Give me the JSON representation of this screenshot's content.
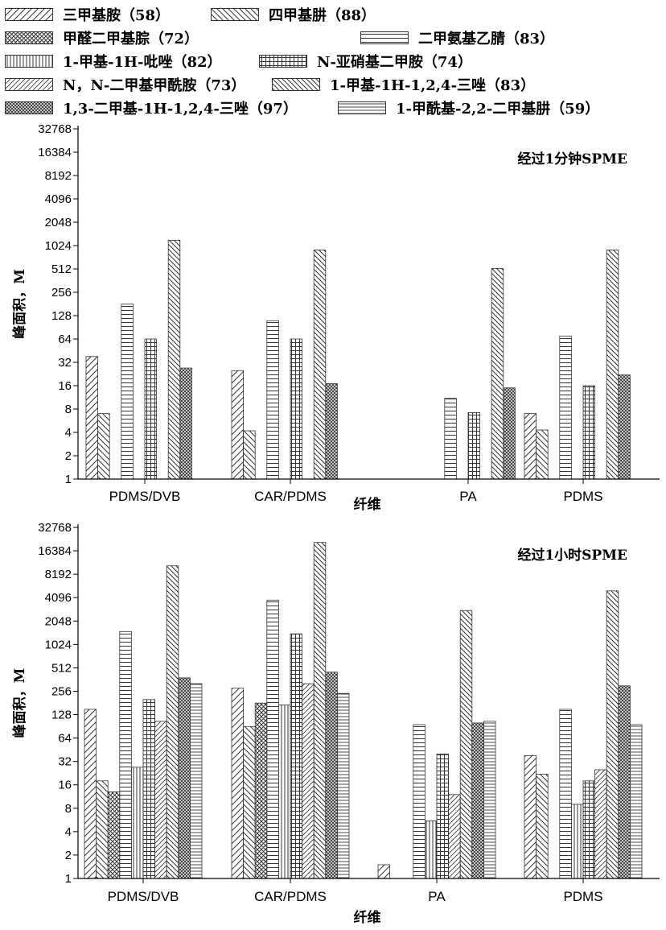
{
  "legend": {
    "items": [
      "三甲基胺（58）",
      "四甲基肼（88）",
      "甲醛二甲基腙（72）",
      "二甲氨基乙腈（83）",
      "1-甲基-1H-吡唑（82）",
      "N-亚硝基二甲胺（74）",
      "N，N-二甲基甲酰胺（73）",
      "1-甲基-1H-1,2,4-三唑（83）",
      "1,3-二甲基-1H-1,2,4-三唑（97）",
      "1-甲酰基-2,2-二甲基肼（59）"
    ]
  },
  "colors": {
    "stroke": "#333333",
    "axis": "#000000",
    "background": "#ffffff"
  },
  "chart_data": [
    {
      "type": "bar",
      "annotation": "经过1分钟SPME",
      "xlabel": "纤维",
      "ylabel": "峰面积，M",
      "yscale": "log2",
      "ylim": [
        1,
        32768
      ],
      "yticks": [
        "1",
        "2",
        "4",
        "8",
        "16",
        "32",
        "64",
        "128",
        "256",
        "512",
        "1024",
        "2048",
        "4096",
        "8192",
        "16384",
        "32768"
      ],
      "categories": [
        "PDMS/DVB",
        "CAR/PDMS",
        "PA",
        "PDMS"
      ],
      "series": [
        {
          "name": "三甲基胺（58）",
          "values": [
            38,
            25,
            null,
            7
          ]
        },
        {
          "name": "四甲基肼（88）",
          "values": [
            7,
            4.2,
            null,
            4.3
          ]
        },
        {
          "name": "甲醛二甲基腙（72）",
          "values": [
            null,
            null,
            null,
            null
          ]
        },
        {
          "name": "二甲氨基乙腈（83）",
          "values": [
            180,
            110,
            11,
            70
          ]
        },
        {
          "name": "1-甲基-1H-吡唑（82）",
          "values": [
            null,
            null,
            null,
            null
          ]
        },
        {
          "name": "N-亚硝基二甲胺（74）",
          "values": [
            64,
            64,
            7.2,
            16
          ]
        },
        {
          "name": "N，N-二甲基甲酰胺（73）",
          "values": [
            null,
            null,
            null,
            null
          ]
        },
        {
          "name": "1-甲基-1H-1,2,4-三唑（83）",
          "values": [
            1200,
            900,
            520,
            900
          ]
        },
        {
          "name": "1,3-二甲基-1H-1,2,4-三唑（97）",
          "values": [
            27,
            17,
            15,
            22
          ]
        },
        {
          "name": "1-甲酰基-2,2-二甲基肼（59）",
          "values": [
            null,
            null,
            null,
            null
          ]
        }
      ]
    },
    {
      "type": "bar",
      "annotation": "经过1小时SPME",
      "xlabel": "纤维",
      "ylabel": "峰面积，M",
      "yscale": "log2",
      "ylim": [
        1,
        32768
      ],
      "yticks": [
        "1",
        "2",
        "4",
        "8",
        "16",
        "32",
        "64",
        "128",
        "256",
        "512",
        "1024",
        "2048",
        "4096",
        "8192",
        "16384",
        "32768"
      ],
      "categories": [
        "PDMS/DVB",
        "CAR/PDMS",
        "PA",
        "PDMS"
      ],
      "series": [
        {
          "name": "三甲基胺（58）",
          "values": [
            150,
            280,
            1.5,
            38
          ]
        },
        {
          "name": "四甲基肼（88）",
          "values": [
            18,
            90,
            null,
            22
          ]
        },
        {
          "name": "甲醛二甲基腙（72）",
          "values": [
            13,
            180,
            null,
            null
          ]
        },
        {
          "name": "二甲氨基乙腈（83）",
          "values": [
            1500,
            3800,
            95,
            150
          ]
        },
        {
          "name": "1-甲基-1H-吡唑（82）",
          "values": [
            27,
            170,
            5.5,
            9
          ]
        },
        {
          "name": "N-亚硝基二甲胺（74）",
          "values": [
            200,
            1400,
            40,
            18
          ]
        },
        {
          "name": "N，N-二甲基甲酰胺（73）",
          "values": [
            105,
            320,
            12,
            25
          ]
        },
        {
          "name": "1-甲基-1H-1,2,4-三唑（83）",
          "values": [
            10500,
            21000,
            2800,
            5000
          ]
        },
        {
          "name": "1,3-二甲基-1H-1,2,4-三唑（97）",
          "values": [
            380,
            450,
            100,
            300
          ]
        },
        {
          "name": "1-甲酰基-2,2-二甲基肼（59）",
          "values": [
            320,
            240,
            105,
            95
          ]
        }
      ]
    }
  ]
}
